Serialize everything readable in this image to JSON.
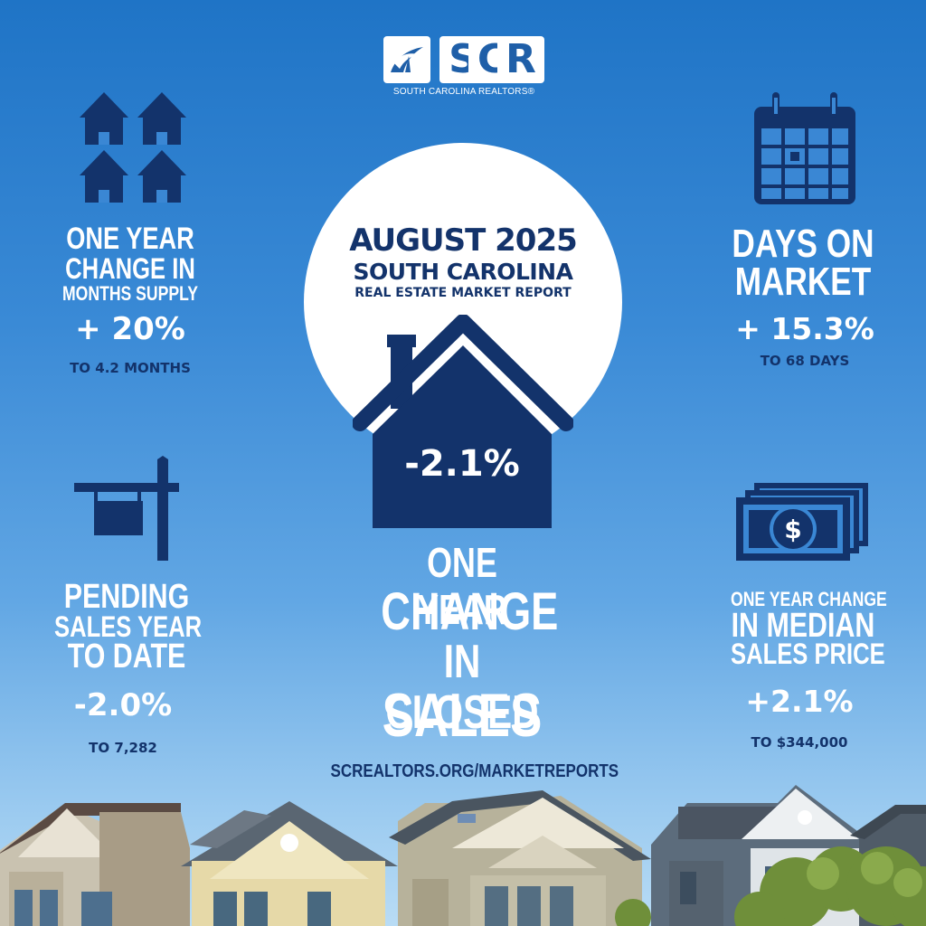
{
  "logo": {
    "letters": [
      "S",
      "C",
      "R"
    ],
    "tagline": "SOUTH CAROLINA REALTORS®"
  },
  "center": {
    "title_line1": "AUGUST 2025",
    "title_line2": "SOUTH CAROLINA",
    "title_line3": "REAL ESTATE MARKET REPORT",
    "value": "-2.1%",
    "label_lines": [
      "ONE YEAR",
      "CHANGE",
      "IN CLOSED",
      "SALES"
    ],
    "url": "SCREALTORS.ORG/MARKETREPORTS"
  },
  "stats": {
    "months_supply": {
      "label_lines": [
        "ONE YEAR",
        "CHANGE IN",
        "MONTHS SUPPLY"
      ],
      "value": "+ 20%",
      "sub": "TO 4.2 MONTHS",
      "icon": "four-houses-icon"
    },
    "days_on_market": {
      "label_lines": [
        "DAYS ON",
        "MARKET"
      ],
      "value": "+ 15.3%",
      "sub": "TO 68 DAYS",
      "icon": "calendar-icon"
    },
    "pending_sales": {
      "label_lines": [
        "PENDING",
        "SALES YEAR",
        "TO DATE"
      ],
      "value": "-2.0%",
      "sub": "TO 7,282",
      "icon": "sale-sign-icon"
    },
    "median_price": {
      "label_lines": [
        "ONE YEAR CHANGE",
        "IN MEDIAN",
        "SALES PRICE"
      ],
      "value": "+2.1%",
      "sub": "TO $344,000",
      "icon": "money-stack-icon"
    }
  },
  "colors": {
    "navy": "#13336b",
    "sky_top": "#1f74c6",
    "sky_bottom": "#b9dcf5",
    "white": "#ffffff"
  }
}
